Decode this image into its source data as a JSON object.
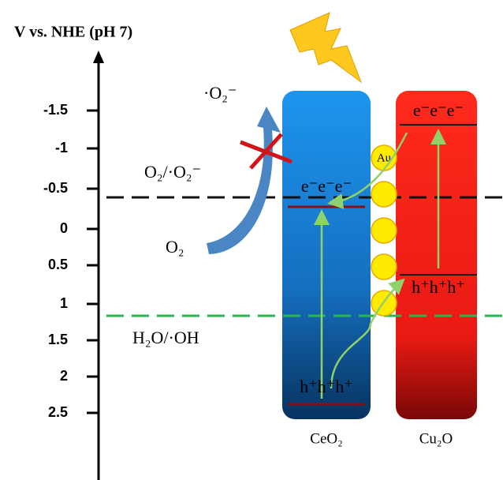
{
  "axis": {
    "title": "V vs. NHE (pH 7)",
    "ticks": [
      "-1.5",
      "-1",
      "-0.5",
      "0",
      "0.5",
      "1",
      "1.5",
      "2",
      "2.5"
    ]
  },
  "labels": {
    "superoxide": "·O₂⁻",
    "couple_o2": "O₂/·O₂⁻",
    "o2": "O₂",
    "couple_oh": "H₂O/·OH"
  },
  "materials": {
    "ceo2": {
      "name": "CeO₂",
      "electrons": "e⁻e⁻e⁻",
      "holes": "h⁺h⁺h⁺"
    },
    "cu2o": {
      "name": "Cu₂O",
      "electrons": "e⁻e⁻e⁻",
      "holes": "h⁺h⁺h⁺"
    },
    "au": "Au"
  }
}
